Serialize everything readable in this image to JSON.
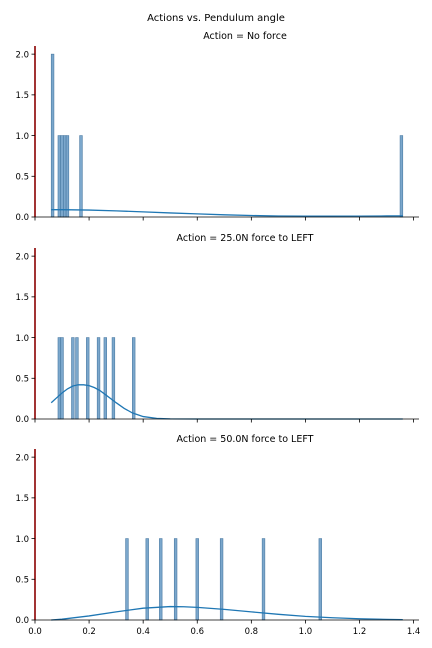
{
  "suptitle": "Actions vs. Pendulum angle",
  "colors": {
    "bar_fill": "#7ba7cc",
    "bar_edge": "#4a7aa3",
    "kde_line": "#1f77b4",
    "left_spine": "#8b0000",
    "axis": "#000000"
  },
  "chart_data": [
    {
      "type": "histogram",
      "title": "Action = No force",
      "xlim": [
        0.0,
        1.42
      ],
      "ylim": [
        0,
        2.1
      ],
      "yticks": [
        0.0,
        0.5,
        1.0,
        1.5,
        2.0
      ],
      "ytick_labels": [
        "0.0",
        "0.5",
        "1.0",
        "1.5",
        "2.0"
      ],
      "xticks": [
        0.0,
        0.2,
        0.4,
        0.6,
        0.8,
        1.0,
        1.2,
        1.4
      ],
      "xtick_labels": [],
      "bin_width": 0.01,
      "bars": [
        {
          "x": 0.065,
          "count": 2
        },
        {
          "x": 0.09,
          "count": 1
        },
        {
          "x": 0.1,
          "count": 1
        },
        {
          "x": 0.11,
          "count": 1
        },
        {
          "x": 0.12,
          "count": 1
        },
        {
          "x": 0.17,
          "count": 1
        },
        {
          "x": 1.355,
          "count": 1
        }
      ],
      "kde": {
        "x": [
          0.06,
          0.1,
          0.2,
          0.3,
          0.4,
          0.5,
          0.6,
          0.7,
          0.8,
          0.9,
          1.0,
          1.1,
          1.2,
          1.3,
          1.36
        ],
        "y": [
          0.09,
          0.09,
          0.085,
          0.075,
          0.063,
          0.05,
          0.038,
          0.027,
          0.018,
          0.012,
          0.01,
          0.01,
          0.011,
          0.013,
          0.014
        ]
      }
    },
    {
      "type": "histogram",
      "title": "Action = 25.0N force to LEFT",
      "xlim": [
        0.0,
        1.42
      ],
      "ylim": [
        0,
        2.1
      ],
      "yticks": [
        0.0,
        0.5,
        1.0,
        1.5,
        2.0
      ],
      "ytick_labels": [
        "0.0",
        "0.5",
        "1.0",
        "1.5",
        "2.0"
      ],
      "xticks": [
        0.0,
        0.2,
        0.4,
        0.6,
        0.8,
        1.0,
        1.2,
        1.4
      ],
      "xtick_labels": [],
      "bin_width": 0.01,
      "bars": [
        {
          "x": 0.09,
          "count": 1
        },
        {
          "x": 0.1,
          "count": 1
        },
        {
          "x": 0.14,
          "count": 1
        },
        {
          "x": 0.155,
          "count": 1
        },
        {
          "x": 0.195,
          "count": 1
        },
        {
          "x": 0.235,
          "count": 1
        },
        {
          "x": 0.26,
          "count": 1
        },
        {
          "x": 0.29,
          "count": 1
        },
        {
          "x": 0.365,
          "count": 1
        }
      ],
      "kde": {
        "x": [
          0.06,
          0.08,
          0.1,
          0.12,
          0.14,
          0.16,
          0.18,
          0.2,
          0.22,
          0.24,
          0.26,
          0.28,
          0.3,
          0.33,
          0.36,
          0.4,
          0.45,
          0.5,
          0.6,
          0.8,
          1.0,
          1.2,
          1.36
        ],
        "y": [
          0.2,
          0.26,
          0.32,
          0.37,
          0.405,
          0.42,
          0.42,
          0.41,
          0.385,
          0.35,
          0.3,
          0.25,
          0.2,
          0.13,
          0.075,
          0.03,
          0.008,
          0.002,
          0.0,
          0.0,
          0.0,
          0.0,
          0.0
        ]
      }
    },
    {
      "type": "histogram",
      "title": "Action = 50.0N force to LEFT",
      "xlim": [
        0.0,
        1.42
      ],
      "ylim": [
        0,
        2.1
      ],
      "yticks": [
        0.0,
        0.5,
        1.0,
        1.5,
        2.0
      ],
      "ytick_labels": [
        "0.0",
        "0.5",
        "1.0",
        "1.5",
        "2.0"
      ],
      "xticks": [
        0.0,
        0.2,
        0.4,
        0.6,
        0.8,
        1.0,
        1.2,
        1.4
      ],
      "xtick_labels": [
        "0.0",
        "0.2",
        "0.4",
        "0.6",
        "0.8",
        "1.0",
        "1.2",
        "1.4"
      ],
      "bin_width": 0.01,
      "bars": [
        {
          "x": 0.34,
          "count": 1
        },
        {
          "x": 0.415,
          "count": 1
        },
        {
          "x": 0.465,
          "count": 1
        },
        {
          "x": 0.52,
          "count": 1
        },
        {
          "x": 0.6,
          "count": 1
        },
        {
          "x": 0.69,
          "count": 1
        },
        {
          "x": 0.845,
          "count": 1
        },
        {
          "x": 1.055,
          "count": 1
        }
      ],
      "kde": {
        "x": [
          0.06,
          0.1,
          0.2,
          0.3,
          0.4,
          0.5,
          0.55,
          0.6,
          0.7,
          0.8,
          0.9,
          1.0,
          1.1,
          1.2,
          1.3,
          1.36
        ],
        "y": [
          0.0,
          0.01,
          0.05,
          0.1,
          0.145,
          0.165,
          0.163,
          0.155,
          0.13,
          0.1,
          0.07,
          0.045,
          0.028,
          0.015,
          0.008,
          0.005
        ]
      }
    }
  ]
}
